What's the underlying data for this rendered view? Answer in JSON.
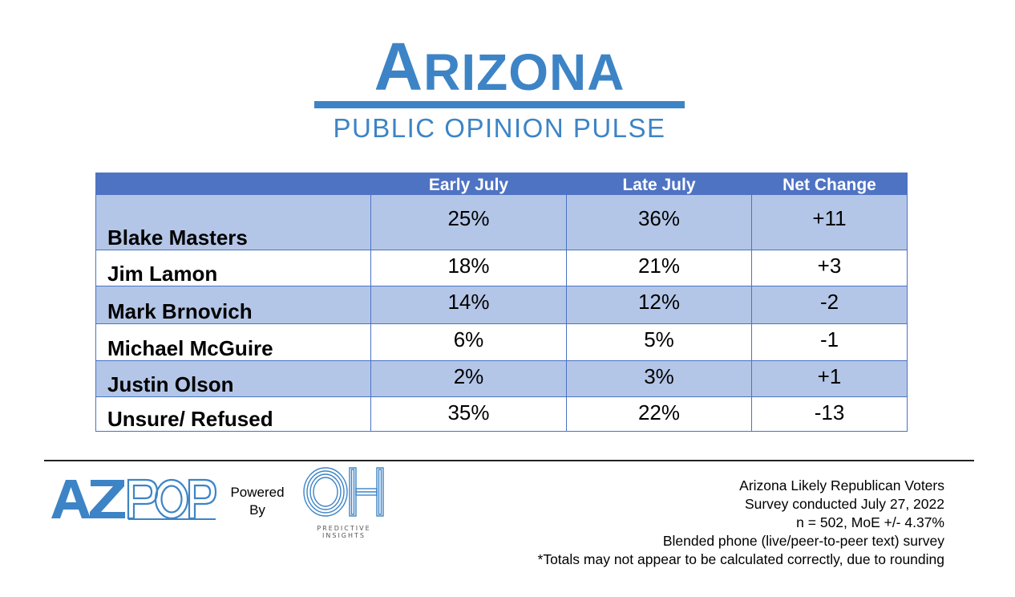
{
  "header": {
    "title_cap": "A",
    "title_rest": "RIZONA",
    "subtitle": "PUBLIC OPINION PULSE"
  },
  "chart_data": {
    "type": "table",
    "columns": [
      "",
      "Early July",
      "Late July",
      "Net Change"
    ],
    "rows": [
      {
        "name": "Blake Masters",
        "early_july": "25%",
        "late_july": "36%",
        "net_change": "+11"
      },
      {
        "name": "Jim Lamon",
        "early_july": "18%",
        "late_july": "21%",
        "net_change": "+3"
      },
      {
        "name": "Mark Brnovich",
        "early_july": "14%",
        "late_july": "12%",
        "net_change": "-2"
      },
      {
        "name": "Michael McGuire",
        "early_july": "6%",
        "late_july": "5%",
        "net_change": "-1"
      },
      {
        "name": "Justin Olson",
        "early_july": "2%",
        "late_july": "3%",
        "net_change": "+1"
      },
      {
        "name": "Unsure/ Refused",
        "early_july": "35%",
        "late_july": "22%",
        "net_change": "-13"
      }
    ]
  },
  "footer": {
    "azpop_logo_text": "AZPOP",
    "powered_by_line1": "Powered",
    "powered_by_line2": "By",
    "oh_logo_text": "OH",
    "oh_caption_line1": "PREDICTIVE",
    "oh_caption_line2": "INSIGHTS",
    "notes": [
      "Arizona Likely Republican Voters",
      "Survey conducted July 27, 2022",
      "n = 502, MoE +/- 4.37%",
      "Blended phone (live/peer-to-peer text) survey",
      "*Totals may not appear to be calculated correctly, due to rounding"
    ]
  },
  "colors": {
    "brand_blue": "#3d84c6",
    "header_blue": "#4f73c3",
    "row_shade": "#b4c6e7",
    "row_plain": "#ffffff"
  }
}
